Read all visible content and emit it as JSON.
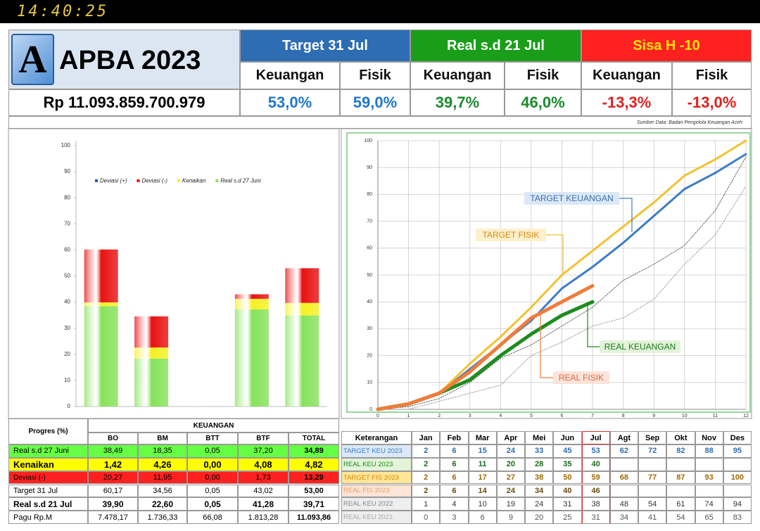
{
  "status_bar": {
    "time": "14:40:25"
  },
  "header": {
    "logo": "A",
    "title": "APBA 2023",
    "amount": "Rp 11.093.859.700.979",
    "groups": [
      {
        "title": "Target 31 Jul",
        "items": [
          {
            "label": "Keuangan",
            "value": "53,0%"
          },
          {
            "label": "Fisik",
            "value": "59,0%"
          }
        ]
      },
      {
        "title": "Real s.d 21 Jul",
        "items": [
          {
            "label": "Keuangan",
            "value": "39,7%"
          },
          {
            "label": "Fisik",
            "value": "46,0%"
          }
        ]
      },
      {
        "title": "Sisa H -10",
        "items": [
          {
            "label": "Keuangan",
            "value": "-13,3%"
          },
          {
            "label": "Fisik",
            "value": "-13,0%"
          }
        ]
      }
    ],
    "source": "Sumber Data: Badan Pengelola Keuangan Aceh"
  },
  "chart_data": [
    {
      "type": "stacked_bar",
      "categories": [
        "BO",
        "BM",
        "BTT",
        "BTF",
        "TOTAL"
      ],
      "series": [
        {
          "name": "Deviasi (+)",
          "color": "#1f5fbf",
          "values": [
            0,
            0,
            0,
            0,
            0
          ]
        },
        {
          "name": "Deviasi (-)",
          "color": "#e81010",
          "values": [
            20.27,
            11.95,
            0,
            1.73,
            13.29
          ]
        },
        {
          "name": "Kenaikan",
          "color": "#f5f020",
          "values": [
            1.42,
            4.26,
            0,
            4.08,
            4.82
          ]
        },
        {
          "name": "Real s.d 27 Juni",
          "color": "#86e25a",
          "values": [
            38.49,
            18.35,
            0.05,
            37.2,
            34.89
          ]
        }
      ],
      "ylim": [
        0,
        100
      ],
      "yticks": [
        0,
        10,
        20,
        30,
        40,
        50,
        60,
        70,
        80,
        90,
        100
      ],
      "grid": false
    },
    {
      "type": "line",
      "x": [
        0,
        1,
        2,
        3,
        4,
        5,
        6,
        7,
        8,
        9,
        10,
        11,
        12
      ],
      "series": [
        {
          "name": "TARGET KEUANGAN",
          "color": "#3d7cc9",
          "style": "solid",
          "values": [
            0,
            2,
            6,
            15,
            24,
            33,
            45,
            53,
            62,
            72,
            82,
            88,
            95
          ]
        },
        {
          "name": "TARGET FISIK",
          "color": "#f2c230",
          "style": "solid",
          "values": [
            0,
            2,
            6,
            17,
            27,
            38,
            50,
            59,
            68,
            77,
            87,
            93,
            100
          ]
        },
        {
          "name": "REAL KEUANGAN",
          "color": "#1e8c1e",
          "style": "bold",
          "values": [
            0,
            2,
            6,
            11,
            20,
            28,
            35,
            40,
            null,
            null,
            null,
            null,
            null
          ]
        },
        {
          "name": "REAL FISIK",
          "color": "#ee7d3b",
          "style": "bold",
          "values": [
            0,
            2,
            6,
            14,
            24,
            34,
            40,
            46,
            null,
            null,
            null,
            null,
            null
          ]
        },
        {
          "color": "#555555",
          "style": "dotted",
          "values": [
            0,
            1,
            4,
            10,
            19,
            24,
            31,
            38,
            48,
            54,
            61,
            74,
            94
          ]
        },
        {
          "color": "#999999",
          "style": "dotted",
          "values": [
            0,
            0,
            3,
            6,
            9,
            20,
            25,
            31,
            34,
            41,
            54,
            65,
            83
          ]
        }
      ],
      "xlim": [
        0,
        12
      ],
      "xticks": [
        0,
        1,
        2,
        3,
        4,
        5,
        6,
        7,
        8,
        9,
        10,
        11,
        12
      ],
      "ylim": [
        0,
        100
      ],
      "yticks": [
        0,
        10,
        20,
        30,
        40,
        50,
        60,
        70,
        80,
        90,
        100
      ],
      "grid": true
    }
  ],
  "progress_table": {
    "title": "Progres (%)",
    "group": "KEUANGAN",
    "columns": [
      "BO",
      "BM",
      "BTT",
      "BTF",
      "TOTAL"
    ],
    "rows": [
      {
        "label": "Real s.d 27 Juni",
        "cells": [
          "38,49",
          "18,35",
          "0,05",
          "37,20",
          "34,89"
        ]
      },
      {
        "label": "Kenaikan",
        "cells": [
          "1,42",
          "4,26",
          "0,00",
          "4,08",
          "4,82"
        ]
      },
      {
        "label": "Deviasi  (-)",
        "cells": [
          "20,27",
          "11,95",
          "0,00",
          "1,73",
          "13,29"
        ]
      },
      {
        "label": "Target 31 Jul",
        "cells": [
          "60,17",
          "34,56",
          "0,05",
          "43,02",
          "53,00"
        ]
      },
      {
        "label": "Real s.d 21 Jul",
        "cells": [
          "39,90",
          "22,60",
          "0,05",
          "41,28",
          "39,71"
        ]
      },
      {
        "label": "Pagu Rp.M",
        "cells": [
          "7.478,17",
          "1.736,33",
          "66,08",
          "1.813,28",
          "11.093,86"
        ]
      }
    ]
  },
  "monthly_table": {
    "header": [
      "Keterangan",
      "Jan",
      "Feb",
      "Mar",
      "Apr",
      "Mei",
      "Jun",
      "Jul",
      "Agt",
      "Sep",
      "Okt",
      "Nov",
      "Des"
    ],
    "rows": [
      {
        "label": "TARGET KEU 2023",
        "cells": [
          "2",
          "6",
          "15",
          "24",
          "33",
          "45",
          "53",
          "62",
          "72",
          "82",
          "88",
          "95"
        ]
      },
      {
        "label": "REAL KEU 2023",
        "cells": [
          "2",
          "6",
          "11",
          "20",
          "28",
          "35",
          "40"
        ]
      },
      {
        "label": "TARGET FIS 2023",
        "cells": [
          "2",
          "6",
          "17",
          "27",
          "38",
          "50",
          "59",
          "68",
          "77",
          "87",
          "93",
          "100"
        ]
      },
      {
        "label": "REAL FIS 2023",
        "cells": [
          "2",
          "6",
          "14",
          "24",
          "34",
          "40",
          "46"
        ]
      },
      {
        "label": "REAL KEU 2022",
        "cells": [
          "1",
          "4",
          "10",
          "19",
          "24",
          "31",
          "38",
          "48",
          "54",
          "61",
          "74",
          "94"
        ]
      },
      {
        "label": "REAL KEU 2021",
        "cells": [
          "0",
          "3",
          "6",
          "9",
          "20",
          "25",
          "31",
          "34",
          "41",
          "54",
          "65",
          "83"
        ]
      }
    ]
  }
}
